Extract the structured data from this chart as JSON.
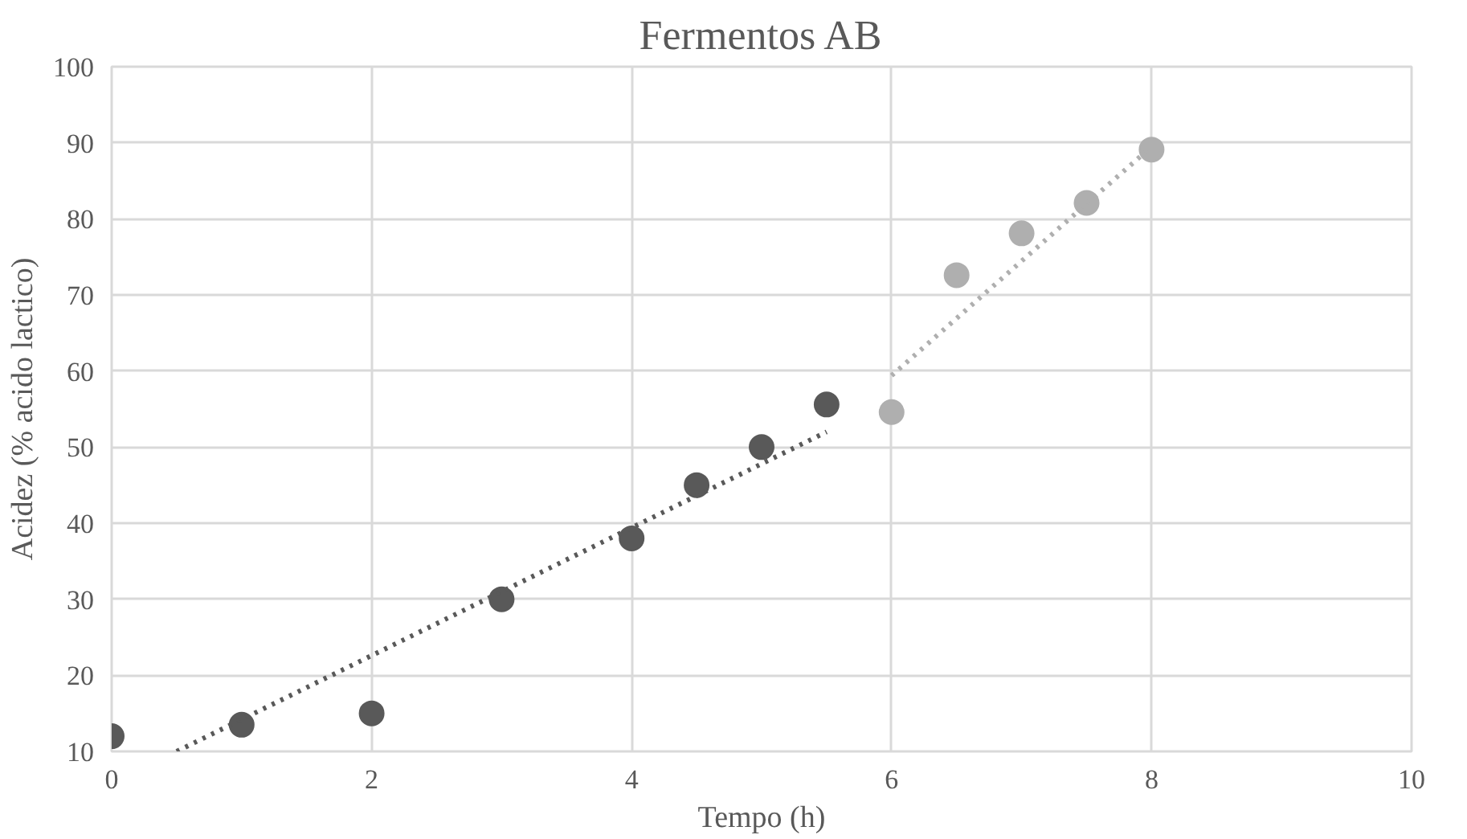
{
  "chart_data": {
    "type": "scatter",
    "title": "Fermentos AB",
    "xlabel": "Tempo (h)",
    "ylabel": "Acidez (% acido lactico)",
    "xlim": [
      0,
      10
    ],
    "ylim": [
      10,
      100
    ],
    "xticks": [
      0,
      2,
      4,
      6,
      8,
      10
    ],
    "yticks": [
      10,
      20,
      30,
      40,
      50,
      60,
      70,
      80,
      90,
      100
    ],
    "grid": true,
    "marker": "circle",
    "series": [
      {
        "color": "#595959",
        "x": [
          0,
          1,
          2,
          3,
          4,
          4.5,
          5,
          5.5
        ],
        "values": [
          12,
          13.5,
          15,
          30,
          38,
          45,
          50,
          55.6
        ]
      },
      {
        "color": "#afafaf",
        "x": [
          6,
          6.5,
          7,
          7.5,
          8
        ],
        "values": [
          54.6,
          72.6,
          78.1,
          82.1,
          89.1
        ]
      },
      {
        "type": "line",
        "color": "#595959",
        "x": [
          0.5,
          5.5
        ],
        "values": [
          10,
          52
        ],
        "line_style": "dotted",
        "marker": "none"
      },
      {
        "type": "line",
        "color": "#afafaf",
        "x": [
          6,
          8
        ],
        "values": [
          59.4,
          89.5
        ],
        "line_style": "dotted",
        "marker": "none"
      }
    ]
  }
}
